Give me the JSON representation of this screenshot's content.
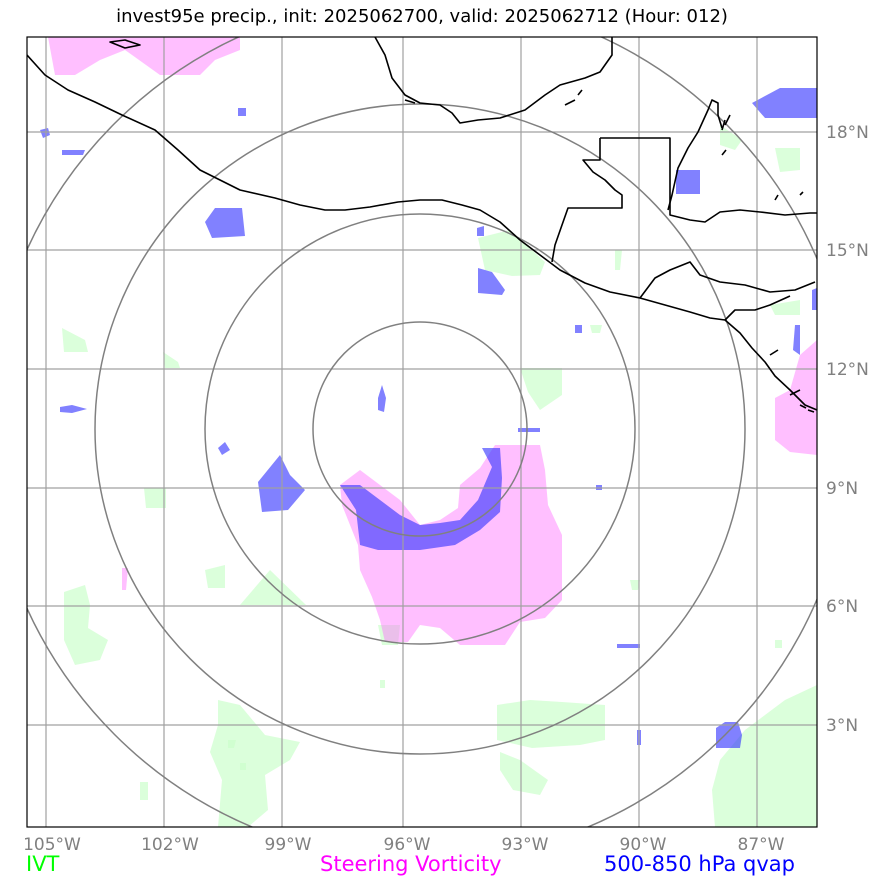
{
  "title": "invest95e precip., init: 2025062700, valid: 2025062712 (Hour: 012)",
  "axes": {
    "lon_labels": [
      "105°W",
      "102°W",
      "99°W",
      "96°W",
      "93°W",
      "90°W",
      "87°W"
    ],
    "lat_labels": [
      "18°N",
      "15°N",
      "12°N",
      "9°N",
      "6°N",
      "3°N"
    ]
  },
  "legend": {
    "ivt": "IVT",
    "vorticity": "Steering Vorticity",
    "qvap": "500-850 hPa qvap"
  },
  "colors": {
    "ivt": "#00ff00",
    "vorticity": "#ff00ff",
    "qvap": "#0000ff",
    "grid": "#a0a0a0",
    "range_rings": "#808080"
  }
}
